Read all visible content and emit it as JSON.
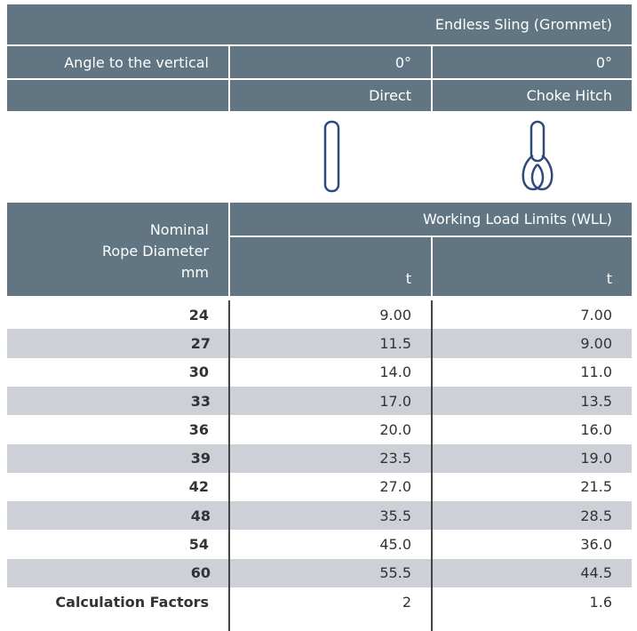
{
  "header": {
    "title": "Endless Sling (Grommet)",
    "angle_label": "Angle to the vertical",
    "angles": [
      "0°",
      "0°"
    ],
    "hitches": [
      "Direct",
      "Choke Hitch"
    ]
  },
  "table": {
    "diameter_header": [
      "Nominal",
      "Rope Diameter",
      "mm"
    ],
    "wll_header": "Working Load Limits (WLL)",
    "units": [
      "t",
      "t"
    ],
    "rows": [
      [
        "24",
        "9.00",
        "7.00"
      ],
      [
        "27",
        "11.5",
        "9.00"
      ],
      [
        "30",
        "14.0",
        "11.0"
      ],
      [
        "33",
        "17.0",
        "13.5"
      ],
      [
        "36",
        "20.0",
        "16.0"
      ],
      [
        "39",
        "23.5",
        "19.0"
      ],
      [
        "42",
        "27.0",
        "21.5"
      ],
      [
        "48",
        "35.5",
        "28.5"
      ],
      [
        "54",
        "45.0",
        "36.0"
      ],
      [
        "60",
        "55.5",
        "44.5"
      ]
    ],
    "factors": [
      "Calculation Factors",
      "2",
      "1.6"
    ]
  }
}
